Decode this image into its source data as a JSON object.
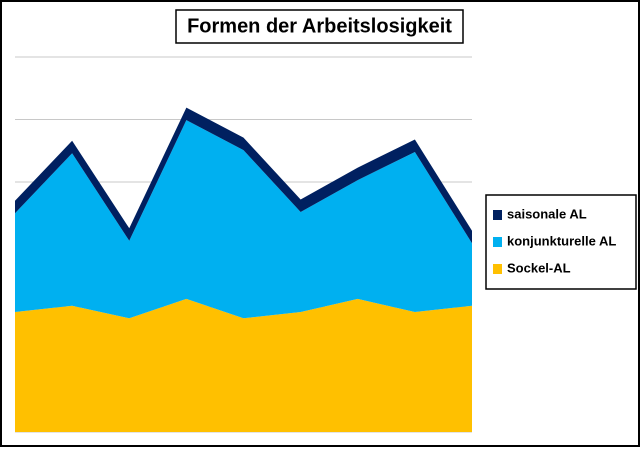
{
  "chart_data": {
    "type": "stacked-area",
    "title": "Formen der Arbeitslosigkeit",
    "categories": [
      null,
      null,
      null,
      null,
      null,
      null,
      null,
      null,
      null
    ],
    "series": [
      {
        "name": "Sockel-AL",
        "color": "#FFC000",
        "values": [
          1.92,
          2.02,
          1.82,
          2.13,
          1.82,
          1.92,
          2.13,
          1.92,
          2.02
        ]
      },
      {
        "name": "konjunkturelle AL",
        "color": "#00B0F0",
        "values": [
          1.58,
          2.44,
          1.24,
          2.86,
          2.69,
          1.6,
          1.9,
          2.56,
          1.0
        ]
      },
      {
        "name": "saisonale AL",
        "color": "#002060",
        "values": [
          0.2,
          0.2,
          0.2,
          0.2,
          0.2,
          0.2,
          0.2,
          0.2,
          0.2
        ]
      }
    ],
    "ylim": [
      0,
      6
    ],
    "yticks": [
      0,
      1,
      2,
      3,
      4,
      5,
      6
    ],
    "grid": true,
    "legend": "right"
  }
}
